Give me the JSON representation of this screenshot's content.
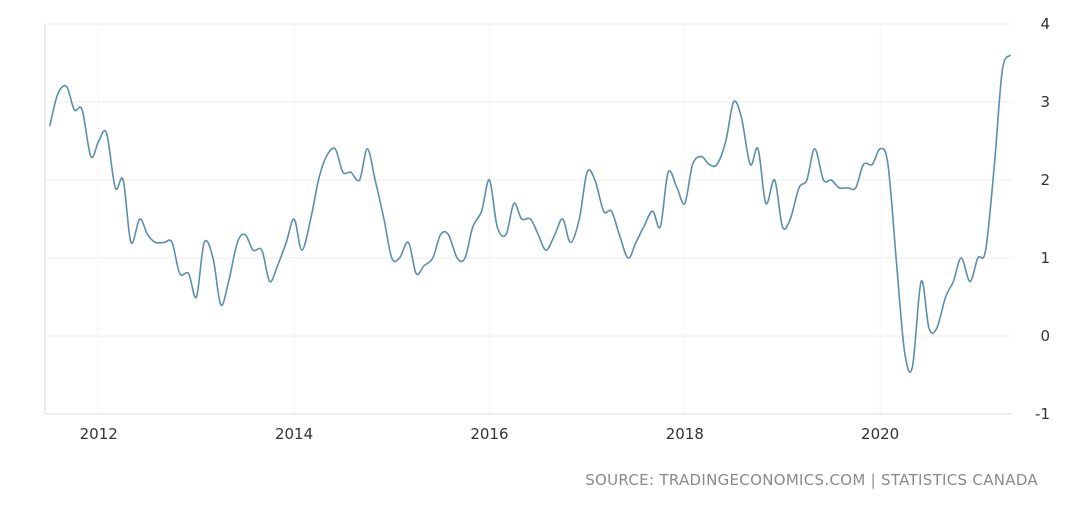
{
  "chart_data": {
    "type": "line",
    "title": "",
    "xlabel": "",
    "ylabel": "",
    "xlim": [
      2011.45,
      2021.35
    ],
    "ylim": [
      -1,
      4
    ],
    "x_ticks": [
      {
        "value": 2012,
        "label": "2012"
      },
      {
        "value": 2014,
        "label": "2014"
      },
      {
        "value": 2016,
        "label": "2016"
      },
      {
        "value": 2018,
        "label": "2018"
      },
      {
        "value": 2020,
        "label": "2020"
      }
    ],
    "y_ticks": [
      {
        "value": 4,
        "label": "4"
      },
      {
        "value": 3,
        "label": "3"
      },
      {
        "value": 2,
        "label": "2"
      },
      {
        "value": 1,
        "label": "1"
      },
      {
        "value": 0,
        "label": "0"
      },
      {
        "value": -1,
        "label": "-1"
      }
    ],
    "grid": true,
    "legend": "none",
    "series": [
      {
        "color": "#5b8ead",
        "points": [
          [
            2011.5,
            2.7
          ],
          [
            2011.58,
            3.1
          ],
          [
            2011.67,
            3.2
          ],
          [
            2011.75,
            2.9
          ],
          [
            2011.83,
            2.9
          ],
          [
            2011.92,
            2.3
          ],
          [
            2012.0,
            2.5
          ],
          [
            2012.08,
            2.6
          ],
          [
            2012.17,
            1.9
          ],
          [
            2012.25,
            2.0
          ],
          [
            2012.33,
            1.2
          ],
          [
            2012.42,
            1.5
          ],
          [
            2012.5,
            1.3
          ],
          [
            2012.58,
            1.2
          ],
          [
            2012.67,
            1.2
          ],
          [
            2012.75,
            1.2
          ],
          [
            2012.83,
            0.8
          ],
          [
            2012.92,
            0.8
          ],
          [
            2013.0,
            0.5
          ],
          [
            2013.08,
            1.2
          ],
          [
            2013.17,
            1.0
          ],
          [
            2013.25,
            0.4
          ],
          [
            2013.33,
            0.7
          ],
          [
            2013.42,
            1.2
          ],
          [
            2013.5,
            1.3
          ],
          [
            2013.58,
            1.1
          ],
          [
            2013.67,
            1.1
          ],
          [
            2013.75,
            0.7
          ],
          [
            2013.83,
            0.9
          ],
          [
            2013.92,
            1.2
          ],
          [
            2014.0,
            1.5
          ],
          [
            2014.08,
            1.1
          ],
          [
            2014.17,
            1.5
          ],
          [
            2014.25,
            2.0
          ],
          [
            2014.33,
            2.3
          ],
          [
            2014.42,
            2.4
          ],
          [
            2014.5,
            2.1
          ],
          [
            2014.58,
            2.1
          ],
          [
            2014.67,
            2.0
          ],
          [
            2014.75,
            2.4
          ],
          [
            2014.83,
            2.0
          ],
          [
            2014.92,
            1.5
          ],
          [
            2015.0,
            1.0
          ],
          [
            2015.08,
            1.0
          ],
          [
            2015.17,
            1.2
          ],
          [
            2015.25,
            0.8
          ],
          [
            2015.33,
            0.9
          ],
          [
            2015.42,
            1.0
          ],
          [
            2015.5,
            1.3
          ],
          [
            2015.58,
            1.3
          ],
          [
            2015.67,
            1.0
          ],
          [
            2015.75,
            1.0
          ],
          [
            2015.83,
            1.4
          ],
          [
            2015.92,
            1.6
          ],
          [
            2016.0,
            2.0
          ],
          [
            2016.08,
            1.4
          ],
          [
            2016.17,
            1.3
          ],
          [
            2016.25,
            1.7
          ],
          [
            2016.33,
            1.5
          ],
          [
            2016.42,
            1.5
          ],
          [
            2016.5,
            1.3
          ],
          [
            2016.58,
            1.1
          ],
          [
            2016.67,
            1.3
          ],
          [
            2016.75,
            1.5
          ],
          [
            2016.83,
            1.2
          ],
          [
            2016.92,
            1.5
          ],
          [
            2017.0,
            2.1
          ],
          [
            2017.08,
            2.0
          ],
          [
            2017.17,
            1.6
          ],
          [
            2017.25,
            1.6
          ],
          [
            2017.33,
            1.3
          ],
          [
            2017.42,
            1.0
          ],
          [
            2017.5,
            1.2
          ],
          [
            2017.58,
            1.4
          ],
          [
            2017.67,
            1.6
          ],
          [
            2017.75,
            1.4
          ],
          [
            2017.83,
            2.1
          ],
          [
            2017.92,
            1.9
          ],
          [
            2018.0,
            1.7
          ],
          [
            2018.08,
            2.2
          ],
          [
            2018.17,
            2.3
          ],
          [
            2018.25,
            2.2
          ],
          [
            2018.33,
            2.2
          ],
          [
            2018.42,
            2.5
          ],
          [
            2018.5,
            3.0
          ],
          [
            2018.58,
            2.8
          ],
          [
            2018.67,
            2.2
          ],
          [
            2018.75,
            2.4
          ],
          [
            2018.83,
            1.7
          ],
          [
            2018.92,
            2.0
          ],
          [
            2019.0,
            1.4
          ],
          [
            2019.08,
            1.5
          ],
          [
            2019.17,
            1.9
          ],
          [
            2019.25,
            2.0
          ],
          [
            2019.33,
            2.4
          ],
          [
            2019.42,
            2.0
          ],
          [
            2019.5,
            2.0
          ],
          [
            2019.58,
            1.9
          ],
          [
            2019.67,
            1.9
          ],
          [
            2019.75,
            1.9
          ],
          [
            2019.83,
            2.2
          ],
          [
            2019.92,
            2.2
          ],
          [
            2020.0,
            2.4
          ],
          [
            2020.08,
            2.2
          ],
          [
            2020.17,
            0.9
          ],
          [
            2020.25,
            -0.2
          ],
          [
            2020.33,
            -0.4
          ],
          [
            2020.42,
            0.7
          ],
          [
            2020.5,
            0.1
          ],
          [
            2020.58,
            0.1
          ],
          [
            2020.67,
            0.5
          ],
          [
            2020.75,
            0.7
          ],
          [
            2020.83,
            1.0
          ],
          [
            2020.92,
            0.7
          ],
          [
            2021.0,
            1.0
          ],
          [
            2021.08,
            1.1
          ],
          [
            2021.17,
            2.2
          ],
          [
            2021.25,
            3.4
          ],
          [
            2021.33,
            3.6
          ]
        ]
      }
    ]
  },
  "source": {
    "text": "SOURCE: TRADINGECONOMICS.COM | STATISTICS CANADA"
  }
}
